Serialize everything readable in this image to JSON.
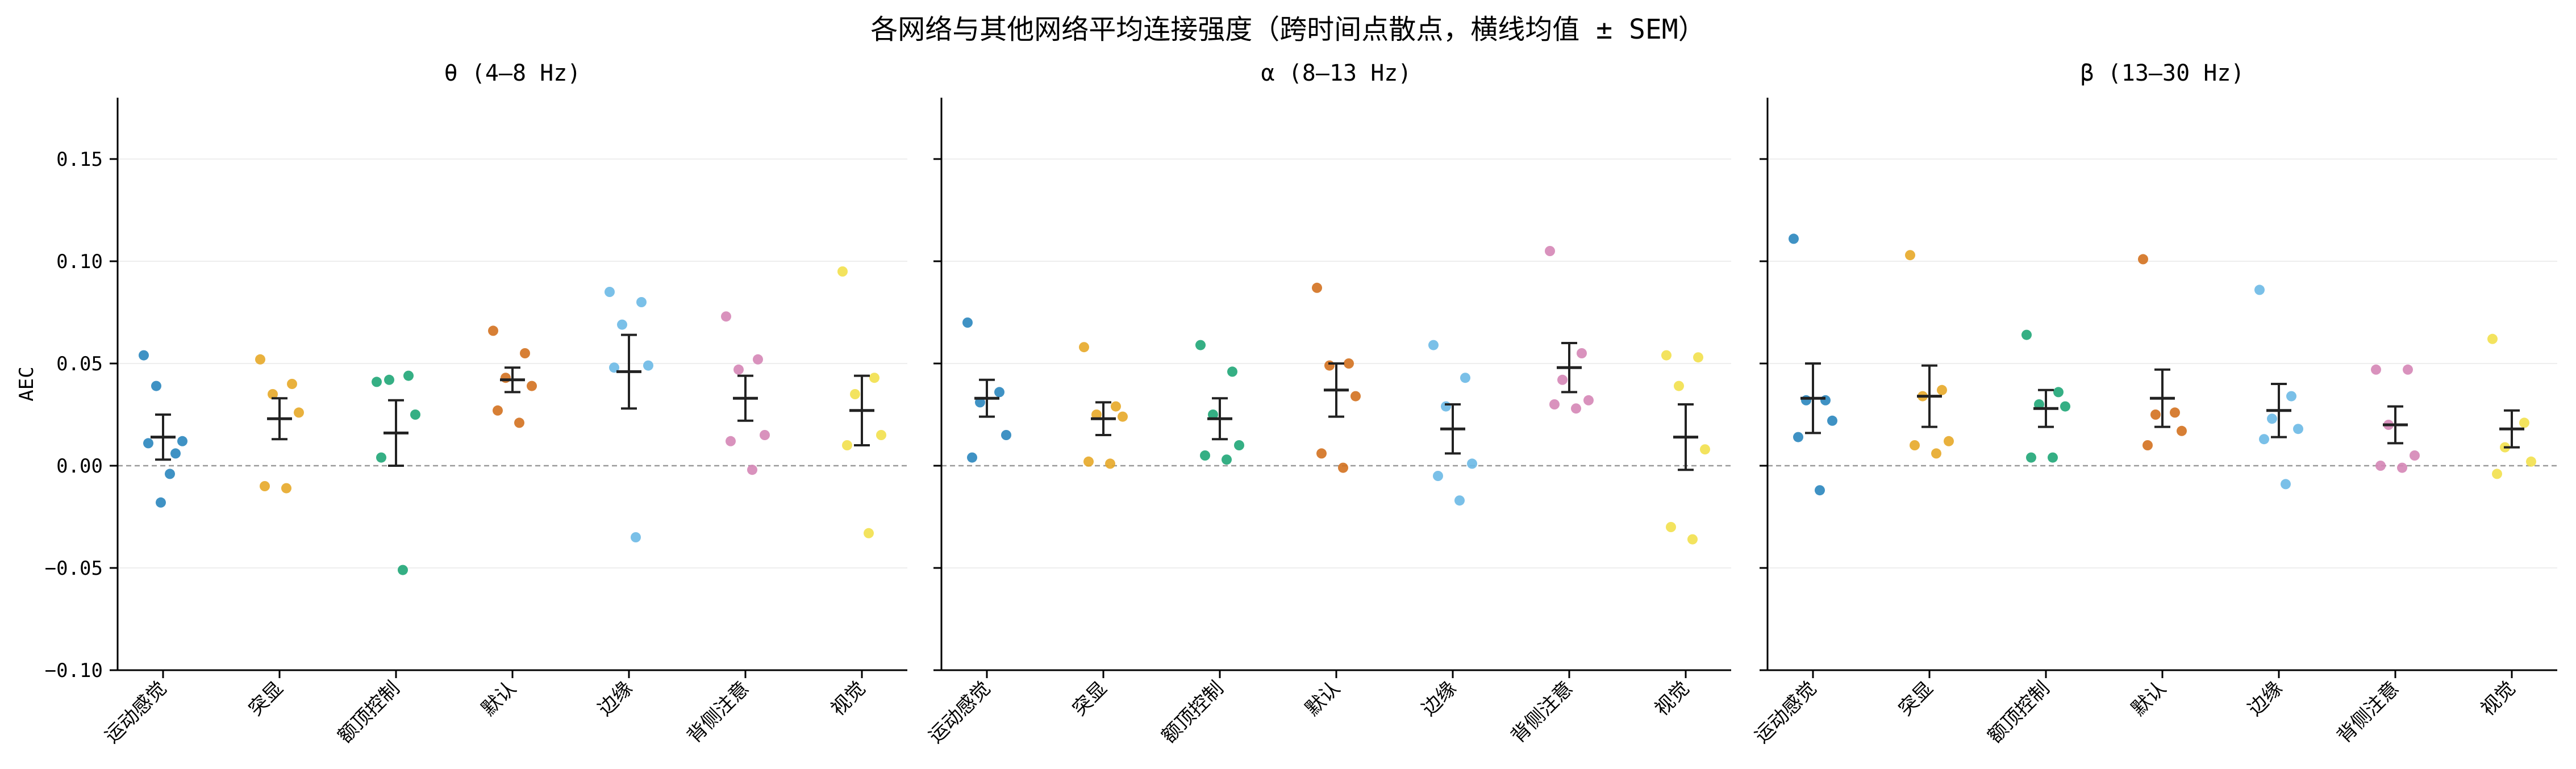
{
  "figure": {
    "title": "各网络与其他网络平均连接强度（跨时间点散点，横线均值 ± SEM）"
  },
  "colors": {
    "series": [
      "#2a86be",
      "#e7a828",
      "#1fa677",
      "#d3711f",
      "#6cb9e6",
      "#d586b6",
      "#f2e04c"
    ],
    "mean_bar": "#222222",
    "zero_line": "#999999",
    "grid": "#eeeeee",
    "axis": "#000000"
  },
  "chart_data": [
    {
      "type": "scatter",
      "title": "θ (4–8 Hz)",
      "ylabel": "AEC",
      "ylim": [
        -0.1,
        0.18
      ],
      "yticks": [
        -0.1,
        -0.05,
        0.0,
        0.05,
        0.1,
        0.15
      ],
      "ytick_labels": [
        "−0.10",
        "−0.05",
        "0.00",
        "0.05",
        "0.10",
        "0.15"
      ],
      "grid": "horizontal",
      "reference_line": 0,
      "categories": [
        "运动感觉",
        "突显",
        "额顶控制",
        "默认",
        "边缘",
        "背侧注意",
        "视觉"
      ],
      "points": [
        [
          0.054,
          0.006,
          0.039,
          0.012,
          0.011,
          -0.004,
          -0.018
        ],
        [
          0.052,
          0.04,
          0.035,
          0.026,
          -0.01,
          -0.011
        ],
        [
          0.041,
          0.044,
          0.042,
          0.025,
          0.004,
          -0.051
        ],
        [
          0.066,
          0.055,
          0.043,
          0.039,
          0.027,
          0.021
        ],
        [
          0.085,
          0.08,
          0.069,
          0.049,
          0.048,
          -0.035
        ],
        [
          0.073,
          0.052,
          0.047,
          0.015,
          0.012,
          -0.002
        ],
        [
          0.095,
          0.043,
          0.035,
          0.015,
          0.01,
          -0.033
        ]
      ],
      "mean": [
        0.014,
        0.023,
        0.016,
        0.042,
        0.046,
        0.033,
        0.027
      ],
      "sem": [
        0.011,
        0.01,
        0.016,
        0.006,
        0.018,
        0.011,
        0.017
      ]
    },
    {
      "type": "scatter",
      "title": "α (8–13 Hz)",
      "ylabel": "",
      "ylim": [
        -0.1,
        0.18
      ],
      "yticks": [
        -0.1,
        -0.05,
        0.0,
        0.05,
        0.1,
        0.15
      ],
      "ytick_labels": [],
      "grid": "horizontal",
      "reference_line": 0,
      "categories": [
        "运动感觉",
        "突显",
        "额顶控制",
        "默认",
        "边缘",
        "背侧注意",
        "视觉"
      ],
      "points": [
        [
          0.07,
          0.036,
          0.031,
          0.015,
          0.004
        ],
        [
          0.058,
          0.029,
          0.025,
          0.024,
          0.002,
          0.001
        ],
        [
          0.059,
          0.046,
          0.025,
          0.01,
          0.005,
          0.003
        ],
        [
          0.087,
          0.05,
          0.049,
          0.034,
          0.006,
          -0.001
        ],
        [
          0.059,
          0.043,
          0.029,
          0.001,
          -0.005,
          -0.017
        ],
        [
          0.105,
          0.055,
          0.042,
          0.032,
          0.03,
          0.028
        ],
        [
          0.054,
          0.053,
          0.039,
          0.008,
          -0.03,
          -0.036
        ]
      ],
      "mean": [
        0.033,
        0.023,
        0.023,
        0.037,
        0.018,
        0.048,
        0.014
      ],
      "sem": [
        0.009,
        0.008,
        0.01,
        0.013,
        0.012,
        0.012,
        0.016
      ]
    },
    {
      "type": "scatter",
      "title": "β (13–30 Hz)",
      "ylabel": "",
      "ylim": [
        -0.1,
        0.18
      ],
      "yticks": [
        -0.1,
        -0.05,
        0.0,
        0.05,
        0.1,
        0.15
      ],
      "ytick_labels": [],
      "grid": "horizontal",
      "reference_line": 0,
      "categories": [
        "运动感觉",
        "突显",
        "额顶控制",
        "默认",
        "边缘",
        "背侧注意",
        "视觉"
      ],
      "points": [
        [
          0.111,
          0.032,
          0.032,
          0.022,
          0.014,
          -0.012
        ],
        [
          0.103,
          0.037,
          0.034,
          0.012,
          0.01,
          0.006
        ],
        [
          0.064,
          0.036,
          0.03,
          0.029,
          0.004,
          0.004
        ],
        [
          0.101,
          0.026,
          0.025,
          0.017,
          0.01
        ],
        [
          0.086,
          0.034,
          0.023,
          0.018,
          0.013,
          -0.009
        ],
        [
          0.047,
          0.047,
          0.02,
          0.005,
          0.0,
          -0.001
        ],
        [
          0.062,
          0.021,
          0.009,
          0.002,
          -0.004
        ]
      ],
      "mean": [
        0.033,
        0.034,
        0.028,
        0.033,
        0.027,
        0.02,
        0.018
      ],
      "sem": [
        0.017,
        0.015,
        0.009,
        0.014,
        0.013,
        0.009,
        0.009
      ]
    }
  ]
}
